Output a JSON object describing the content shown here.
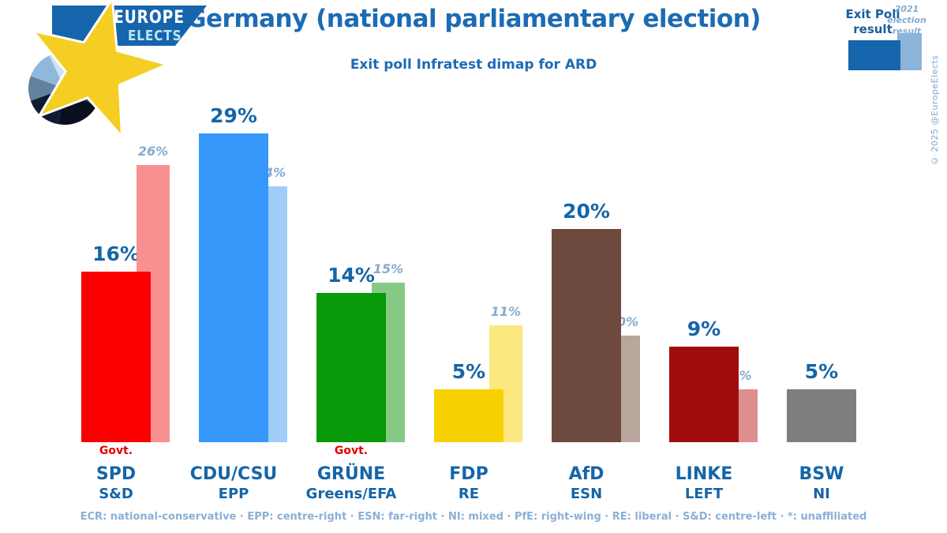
{
  "logo": {
    "line1": "EUROPE",
    "line2": "ELECTS"
  },
  "header": {
    "title": "Germany (national parliamentary election)",
    "subtitle": "Exit poll Infratest dimap for ARD"
  },
  "legend": {
    "exit_label": "Exit Poll result",
    "prev_label": "2021 election result",
    "exit_color": "#1565ac",
    "prev_color": "#8cb4d8"
  },
  "copyright": "© 2025 @EuropeElects",
  "footer": "ECR: national-conservative · EPP: centre-right · ESN: far-right · NI: mixed · PfE: right-wing · RE: liberal · S&D: centre-left · *: unaffiliated",
  "chart_data": {
    "type": "bar",
    "title": "Germany (national parliamentary election)",
    "subtitle": "Exit poll Infratest dimap for ARD",
    "series": [
      {
        "name": "Exit Poll result"
      },
      {
        "name": "2021 election result"
      }
    ],
    "ylim": [
      0,
      30
    ],
    "grid": false,
    "legend_position": "top-right",
    "govt_label": "Govt.",
    "groups": [
      {
        "party": "SPD",
        "group": "S&D",
        "exit": 16,
        "prev": 26,
        "exit_label": "16%",
        "prev_label": "26%",
        "govt": true,
        "color": "#fb0000",
        "prev_color": "#f89090"
      },
      {
        "party": "CDU/CSU",
        "group": "EPP",
        "exit": 29,
        "prev": 24,
        "exit_label": "29%",
        "prev_label": "24%",
        "govt": false,
        "color": "#3598fa",
        "prev_color": "#9fcdf8"
      },
      {
        "party": "GRÜNE",
        "group": "Greens/EFA",
        "exit": 14,
        "prev": 15,
        "exit_label": "14%",
        "prev_label": "15%",
        "govt": true,
        "color": "#079907",
        "prev_color": "#85c985"
      },
      {
        "party": "FDP",
        "group": "RE",
        "exit": 5,
        "prev": 11,
        "exit_label": "5%",
        "prev_label": "11%",
        "govt": false,
        "color": "#f8d200",
        "prev_color": "#fbe87f"
      },
      {
        "party": "AfD",
        "group": "ESN",
        "exit": 20,
        "prev": 10,
        "exit_label": "20%",
        "prev_label": "10%",
        "govt": false,
        "color": "#6d4a3d",
        "prev_color": "#b8a69c"
      },
      {
        "party": "LINKE",
        "group": "LEFT",
        "exit": 9,
        "prev": 5,
        "exit_label": "9%",
        "prev_label": "5%",
        "govt": false,
        "color": "#a00c0c",
        "prev_color": "#df8e8e"
      },
      {
        "party": "BSW",
        "group": "NI",
        "exit": 5,
        "prev": null,
        "exit_label": "5%",
        "prev_label": null,
        "govt": false,
        "color": "#7e7e7e",
        "prev_color": null
      }
    ]
  }
}
